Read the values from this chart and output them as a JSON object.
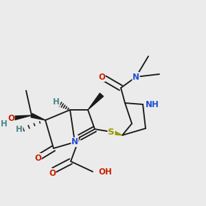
{
  "bg_color": "#ebebeb",
  "bond_color": "#1a1a1a",
  "bond_width": 1.4,
  "atom_colors": {
    "C": "#1a1a1a",
    "N": "#1e4bd4",
    "O": "#cc2200",
    "S": "#999900",
    "H": "#4a8888"
  },
  "font_size": 8.5
}
